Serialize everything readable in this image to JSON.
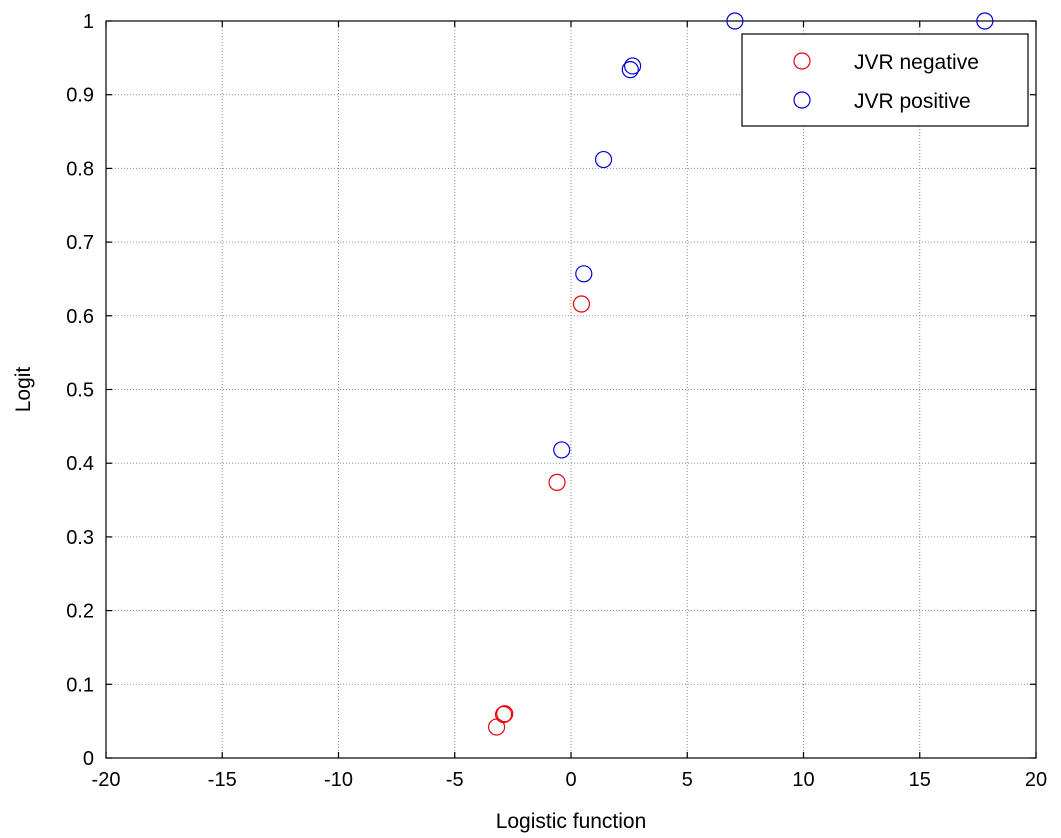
{
  "chart_data": {
    "type": "scatter",
    "title": "",
    "xlabel": "Logistic function",
    "ylabel": "Logit",
    "xlim": [
      -20,
      20
    ],
    "ylim": [
      0,
      1
    ],
    "x_ticks": [
      -20,
      -15,
      -10,
      -5,
      0,
      5,
      10,
      15,
      20
    ],
    "y_ticks": [
      0,
      0.1,
      0.2,
      0.3,
      0.4,
      0.5,
      0.6,
      0.7,
      0.8,
      0.9,
      1
    ],
    "grid": true,
    "legend_position": "top-right",
    "marker": "open-circle",
    "series": [
      {
        "name": "JVR negative",
        "color": "#e8000b",
        "points": [
          {
            "x": -3.2,
            "y": 0.042
          },
          {
            "x": -2.9,
            "y": 0.059
          },
          {
            "x": -2.85,
            "y": 0.06
          },
          {
            "x": -0.6,
            "y": 0.374
          },
          {
            "x": 0.45,
            "y": 0.616
          }
        ]
      },
      {
        "name": "JVR positive",
        "color": "#0000d8",
        "points": [
          {
            "x": -0.4,
            "y": 0.418
          },
          {
            "x": 0.55,
            "y": 0.657
          },
          {
            "x": 1.4,
            "y": 0.812
          },
          {
            "x": 2.55,
            "y": 0.934
          },
          {
            "x": 2.65,
            "y": 0.939
          },
          {
            "x": 7.05,
            "y": 1.0
          },
          {
            "x": 17.8,
            "y": 1.0
          }
        ]
      }
    ]
  }
}
